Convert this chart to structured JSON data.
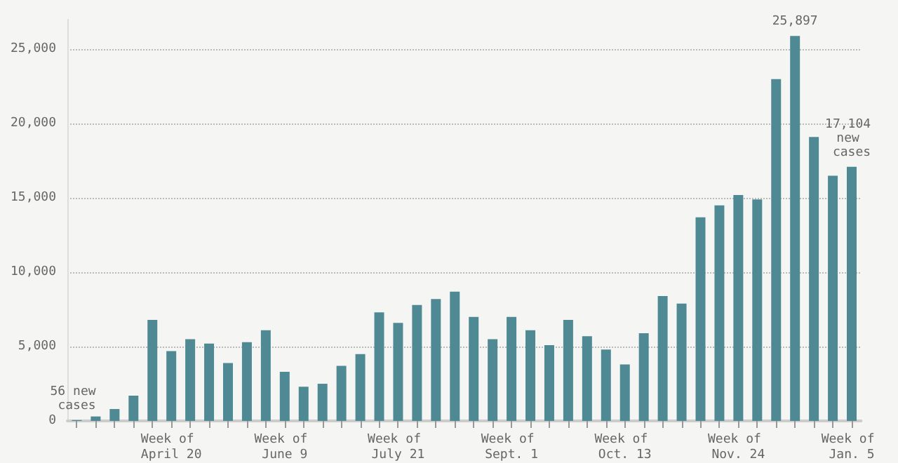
{
  "chart_data": {
    "type": "bar",
    "categories": [
      null,
      null,
      null,
      null,
      null,
      "Week of April 20",
      null,
      null,
      null,
      null,
      null,
      "Week of June 9",
      null,
      null,
      null,
      null,
      null,
      "Week of July 21",
      null,
      null,
      null,
      null,
      null,
      "Week of Sept. 1",
      null,
      null,
      null,
      null,
      null,
      "Week of Oct. 13",
      null,
      null,
      null,
      null,
      null,
      "Week of Nov. 24",
      null,
      null,
      null,
      null,
      null,
      "Week of Jan. 5"
    ],
    "values": [
      56,
      300,
      800,
      1700,
      6800,
      4700,
      5500,
      5200,
      3900,
      5300,
      6100,
      3300,
      2300,
      2500,
      3700,
      4500,
      7300,
      6600,
      7800,
      8200,
      8700,
      7000,
      5500,
      7000,
      6100,
      5100,
      6800,
      5700,
      4800,
      3800,
      5900,
      8400,
      7900,
      13700,
      14500,
      15200,
      14900,
      23000,
      25897,
      19100,
      16500,
      17104
    ],
    "value_labels": [
      "56 new cases",
      null,
      null,
      null,
      null,
      null,
      null,
      null,
      null,
      null,
      null,
      null,
      null,
      null,
      null,
      null,
      null,
      null,
      null,
      null,
      null,
      null,
      null,
      null,
      null,
      null,
      null,
      null,
      null,
      null,
      null,
      null,
      null,
      null,
      null,
      null,
      null,
      null,
      "25,897",
      null,
      null,
      "17,104 new cases"
    ],
    "color": "#4f8a94",
    "ylim": [
      0,
      27000
    ],
    "yticks": [
      0,
      {
        "value": 5000,
        "label": "5,000"
      },
      {
        "value": 10000,
        "label": "10,000"
      },
      {
        "value": 15000,
        "label": "15,000"
      },
      {
        "value": 20000,
        "label": "20,000"
      },
      {
        "value": 25000,
        "label": "25,000"
      }
    ],
    "grid": "y"
  }
}
